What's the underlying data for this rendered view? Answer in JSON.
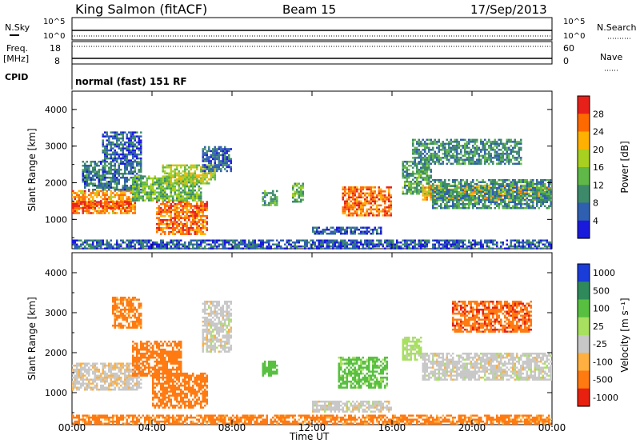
{
  "header": {
    "station": "King Salmon (fitACF)",
    "beam": "Beam 15",
    "date": "17/Sep/2013"
  },
  "top_panels": {
    "nsky_label": "N.Sky",
    "nsky_ticks": [
      "10^5",
      "10^0"
    ],
    "nsearch_label": "N.Search",
    "nsearch_ticks": [
      "10^5",
      "10^0"
    ],
    "freq_label": "Freq.",
    "freq_unit": "[MHz]",
    "freq_ticks": [
      "18",
      "8"
    ],
    "nave_label": "Nave",
    "nave_ticks": [
      "60",
      "0"
    ],
    "cpid_label": "CPID",
    "cpid_text": "normal (fast) 151 RF"
  },
  "chart_data": [
    {
      "type": "heatmap",
      "name": "power",
      "ylabel": "Slant Range [km]",
      "yticks": [
        "1000",
        "2000",
        "3000",
        "4000"
      ],
      "ylim": [
        200,
        4500
      ],
      "colorbar_label": "Power [dB]",
      "colorbar_ticks": [
        "4",
        "8",
        "12",
        "16",
        "20",
        "24",
        "28"
      ],
      "colors": [
        "#1a1adc",
        "#2f5fb0",
        "#3d8a6a",
        "#5fb848",
        "#a8d020",
        "#ffb000",
        "#ff6a00",
        "#e8201a"
      ],
      "regions": [
        {
          "t0": 0.0,
          "t1": 3.2,
          "r0": 1150,
          "r1": 1800,
          "level": 24
        },
        {
          "t0": 0.0,
          "t1": 3.0,
          "r0": 1300,
          "r1": 1500,
          "level": 28
        },
        {
          "t0": 0.5,
          "t1": 3.5,
          "r0": 1800,
          "r1": 2600,
          "level": 8
        },
        {
          "t0": 1.5,
          "t1": 3.5,
          "r0": 2600,
          "r1": 3400,
          "level": 6
        },
        {
          "t0": 3.0,
          "t1": 6.5,
          "r0": 1500,
          "r1": 2200,
          "level": 14
        },
        {
          "t0": 4.5,
          "t1": 7.2,
          "r0": 2000,
          "r1": 2500,
          "level": 18
        },
        {
          "t0": 4.2,
          "t1": 6.8,
          "r0": 600,
          "r1": 1500,
          "level": 26
        },
        {
          "t0": 6.5,
          "t1": 8.0,
          "r0": 2300,
          "r1": 3000,
          "level": 6
        },
        {
          "t0": 9.5,
          "t1": 10.3,
          "r0": 1400,
          "r1": 1800,
          "level": 12
        },
        {
          "t0": 11.0,
          "t1": 11.6,
          "r0": 1500,
          "r1": 2000,
          "level": 14
        },
        {
          "t0": 13.5,
          "t1": 16.0,
          "r0": 1100,
          "r1": 1900,
          "level": 26
        },
        {
          "t0": 12.0,
          "t1": 15.5,
          "r0": 600,
          "r1": 800,
          "level": 6
        },
        {
          "t0": 16.5,
          "t1": 18.0,
          "r0": 1700,
          "r1": 2600,
          "level": 12
        },
        {
          "t0": 17.5,
          "t1": 24.0,
          "r0": 1550,
          "r1": 1950,
          "level": 22
        },
        {
          "t0": 18.0,
          "t1": 24.0,
          "r0": 1300,
          "r1": 2100,
          "level": 10
        },
        {
          "t0": 17.0,
          "t1": 22.5,
          "r0": 2500,
          "r1": 3200,
          "level": 10
        },
        {
          "t0": 0.0,
          "t1": 24.0,
          "r0": 200,
          "r1": 450,
          "level": 6
        }
      ]
    },
    {
      "type": "heatmap",
      "name": "velocity",
      "ylabel": "Slant Range [km]",
      "yticks": [
        "1000",
        "2000",
        "3000",
        "4000"
      ],
      "ylim": [
        200,
        4500
      ],
      "colorbar_label": "Velocity [m s⁻¹]",
      "colorbar_ticks": [
        "1000",
        "500",
        "100",
        "25",
        "-25",
        "-100",
        "-500",
        "-1000"
      ],
      "colors": [
        "#1a3cd8",
        "#2e8a5a",
        "#58c040",
        "#a8e060",
        "#c8c8c8",
        "#ffb040",
        "#ff7a10",
        "#e82010"
      ],
      "regions": [
        {
          "t0": 0.0,
          "t1": 3.5,
          "r0": 1050,
          "r1": 1750,
          "level": -10
        },
        {
          "t0": 3.0,
          "t1": 5.5,
          "r0": 1400,
          "r1": 2300,
          "level": -200
        },
        {
          "t0": 4.0,
          "t1": 6.8,
          "r0": 600,
          "r1": 1500,
          "level": -300
        },
        {
          "t0": 6.5,
          "t1": 8.0,
          "r0": 2000,
          "r1": 3300,
          "level": 0
        },
        {
          "t0": 2.0,
          "t1": 3.5,
          "r0": 2600,
          "r1": 3400,
          "level": -150
        },
        {
          "t0": 9.5,
          "t1": 10.3,
          "r0": 1400,
          "r1": 1800,
          "level": 300
        },
        {
          "t0": 13.3,
          "t1": 15.8,
          "r0": 1100,
          "r1": 1900,
          "level": 150
        },
        {
          "t0": 12.0,
          "t1": 16.0,
          "r0": 500,
          "r1": 800,
          "level": 0
        },
        {
          "t0": 16.5,
          "t1": 17.5,
          "r0": 1800,
          "r1": 2400,
          "level": 50
        },
        {
          "t0": 17.5,
          "t1": 24.0,
          "r0": 1300,
          "r1": 2000,
          "level": 0
        },
        {
          "t0": 19.0,
          "t1": 23.0,
          "r0": 2500,
          "r1": 3300,
          "level": -400
        },
        {
          "t0": 0.0,
          "t1": 24.0,
          "r0": 200,
          "r1": 450,
          "level": -150
        }
      ]
    }
  ],
  "xaxis": {
    "label": "Time UT",
    "ticks": [
      "00:00",
      "04:00",
      "08:00",
      "12:00",
      "16:00",
      "20:00",
      "00:00"
    ],
    "range_hours": [
      0,
      24
    ]
  }
}
